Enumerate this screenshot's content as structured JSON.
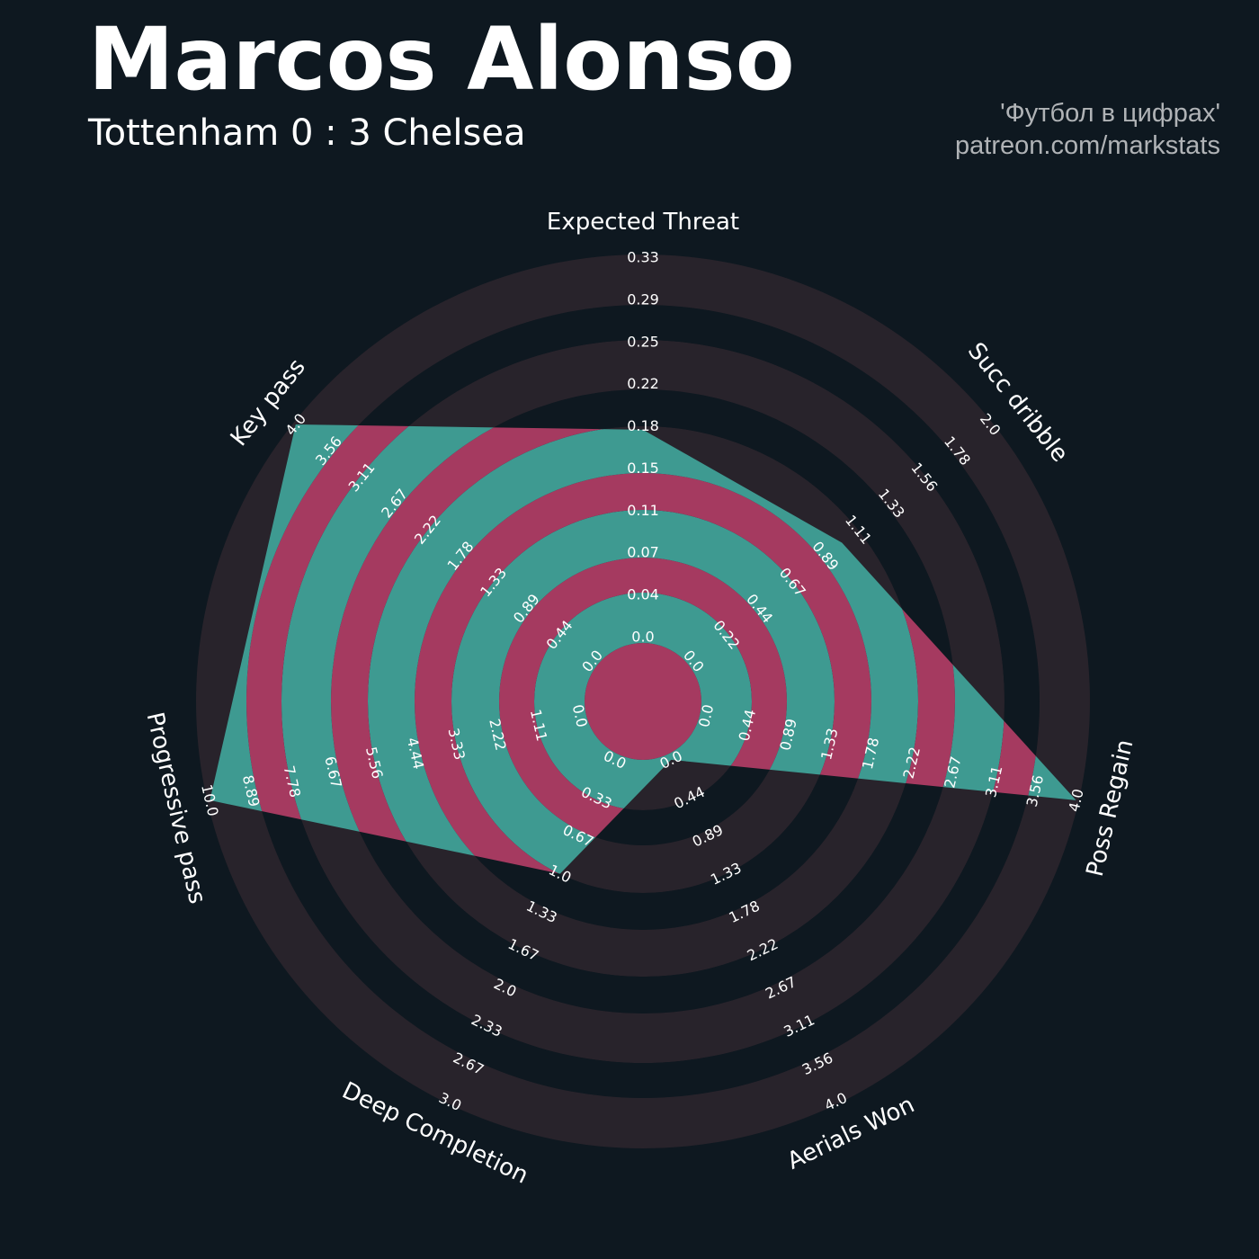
{
  "header": {
    "title": "Marcos Alonso",
    "subtitle": "Tottenham 0 : 3 Chelsea",
    "credit_line1": "'Футбол в цифрах'",
    "credit_line2": "patreon.com/markstats"
  },
  "colors": {
    "background": "#0e1820",
    "ring_light": "#28232b",
    "radar_fill": "#3e9a91",
    "radar_ring": "#a53a60",
    "text": "#ffffff"
  },
  "chart_data": {
    "type": "radar",
    "params": [
      "Expected Threat",
      "Succ dribble",
      "Poss Regain",
      "Aerials Won",
      "Deep Completion",
      "Progressive pass",
      "Key pass"
    ],
    "ranges": [
      [
        0.0,
        0.33
      ],
      [
        0.0,
        2.0
      ],
      [
        0.0,
        4.0
      ],
      [
        0.0,
        4.0
      ],
      [
        0.0,
        3.0
      ],
      [
        0.0,
        10.0
      ],
      [
        0.0,
        4.0
      ]
    ],
    "values": [
      0.18,
      1.0,
      4.0,
      0.0,
      1.0,
      10.0,
      4.0
    ],
    "tick_labels": [
      [
        "0.0",
        "0.04",
        "0.07",
        "0.11",
        "0.15",
        "0.18",
        "0.22",
        "0.25",
        "0.29",
        "0.33"
      ],
      [
        "0.0",
        "0.22",
        "0.44",
        "0.67",
        "0.89",
        "1.11",
        "1.33",
        "1.56",
        "1.78",
        "2.0"
      ],
      [
        "0.0",
        "0.44",
        "0.89",
        "1.33",
        "1.78",
        "2.22",
        "2.67",
        "3.11",
        "3.56",
        "4.0"
      ],
      [
        "0.0",
        "0.44",
        "0.89",
        "1.33",
        "1.78",
        "2.22",
        "2.67",
        "3.11",
        "3.56",
        "4.0"
      ],
      [
        "0.0",
        "0.33",
        "0.67",
        "1.0",
        "1.33",
        "1.67",
        "2.0",
        "2.33",
        "2.67",
        "3.0"
      ],
      [
        "0.0",
        "1.11",
        "2.22",
        "3.33",
        "4.44",
        "5.56",
        "6.67",
        "7.78",
        "8.89",
        "10.0"
      ],
      [
        "0.0",
        "0.44",
        "0.89",
        "1.33",
        "1.78",
        "2.22",
        "2.67",
        "3.11",
        "3.56",
        "4.0"
      ]
    ]
  }
}
